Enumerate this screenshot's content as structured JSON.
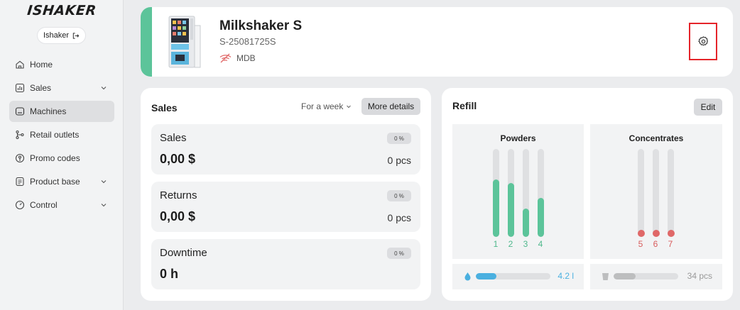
{
  "app": {
    "logo": "ISHAKER"
  },
  "user": {
    "name": "Ishaker"
  },
  "sidebar": {
    "items": [
      {
        "label": "Home",
        "icon": "home-icon",
        "expandable": false,
        "active": false
      },
      {
        "label": "Sales",
        "icon": "bar-chart-icon",
        "expandable": true,
        "active": false
      },
      {
        "label": "Machines",
        "icon": "machine-icon",
        "expandable": false,
        "active": true
      },
      {
        "label": "Retail outlets",
        "icon": "branch-icon",
        "expandable": false,
        "active": false
      },
      {
        "label": "Promo codes",
        "icon": "tag-icon",
        "expandable": false,
        "active": false
      },
      {
        "label": "Product base",
        "icon": "list-icon",
        "expandable": true,
        "active": false
      },
      {
        "label": "Control",
        "icon": "gauge-icon",
        "expandable": true,
        "active": false
      }
    ]
  },
  "machine": {
    "name": "Milkshaker S",
    "serial": "S-25081725S",
    "payment": "MDB",
    "accent": "#5cc49a"
  },
  "sales": {
    "title": "Sales",
    "period": "For a week",
    "more_label": "More details",
    "stats": [
      {
        "label": "Sales",
        "percent": "0 %",
        "value": "0,00 $",
        "qty": "0 pcs"
      },
      {
        "label": "Returns",
        "percent": "0 %",
        "value": "0,00 $",
        "qty": "0 pcs"
      },
      {
        "label": "Downtime",
        "percent": "0 %",
        "value": "0 h",
        "qty": ""
      }
    ]
  },
  "refill": {
    "title": "Refill",
    "edit_label": "Edit",
    "powders": {
      "title": "Powders",
      "tubes": [
        {
          "num": "1",
          "level": 0.65
        },
        {
          "num": "2",
          "level": 0.61
        },
        {
          "num": "3",
          "level": 0.32
        },
        {
          "num": "4",
          "level": 0.44
        }
      ]
    },
    "concentrates": {
      "title": "Concentrates",
      "tubes": [
        {
          "num": "5",
          "level": 0
        },
        {
          "num": "6",
          "level": 0
        },
        {
          "num": "7",
          "level": 0
        }
      ]
    },
    "water": {
      "value": "4.2 l",
      "level": 0.28,
      "color": "#4ab0e0"
    },
    "cups": {
      "value": "34 pcs",
      "level": 0.34,
      "color": "#bdbebf"
    }
  }
}
